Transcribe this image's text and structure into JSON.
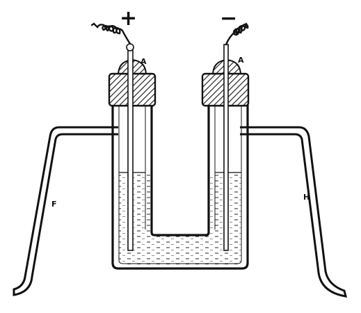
{
  "labels": {
    "plus": "+",
    "minus": "−",
    "cap_left": "A",
    "cap_right": "A",
    "leg_left": "F",
    "leg_right": "H"
  },
  "colors": {
    "ink": "#111111",
    "paper": "#ffffff",
    "liquid_lines": "#222222"
  }
}
